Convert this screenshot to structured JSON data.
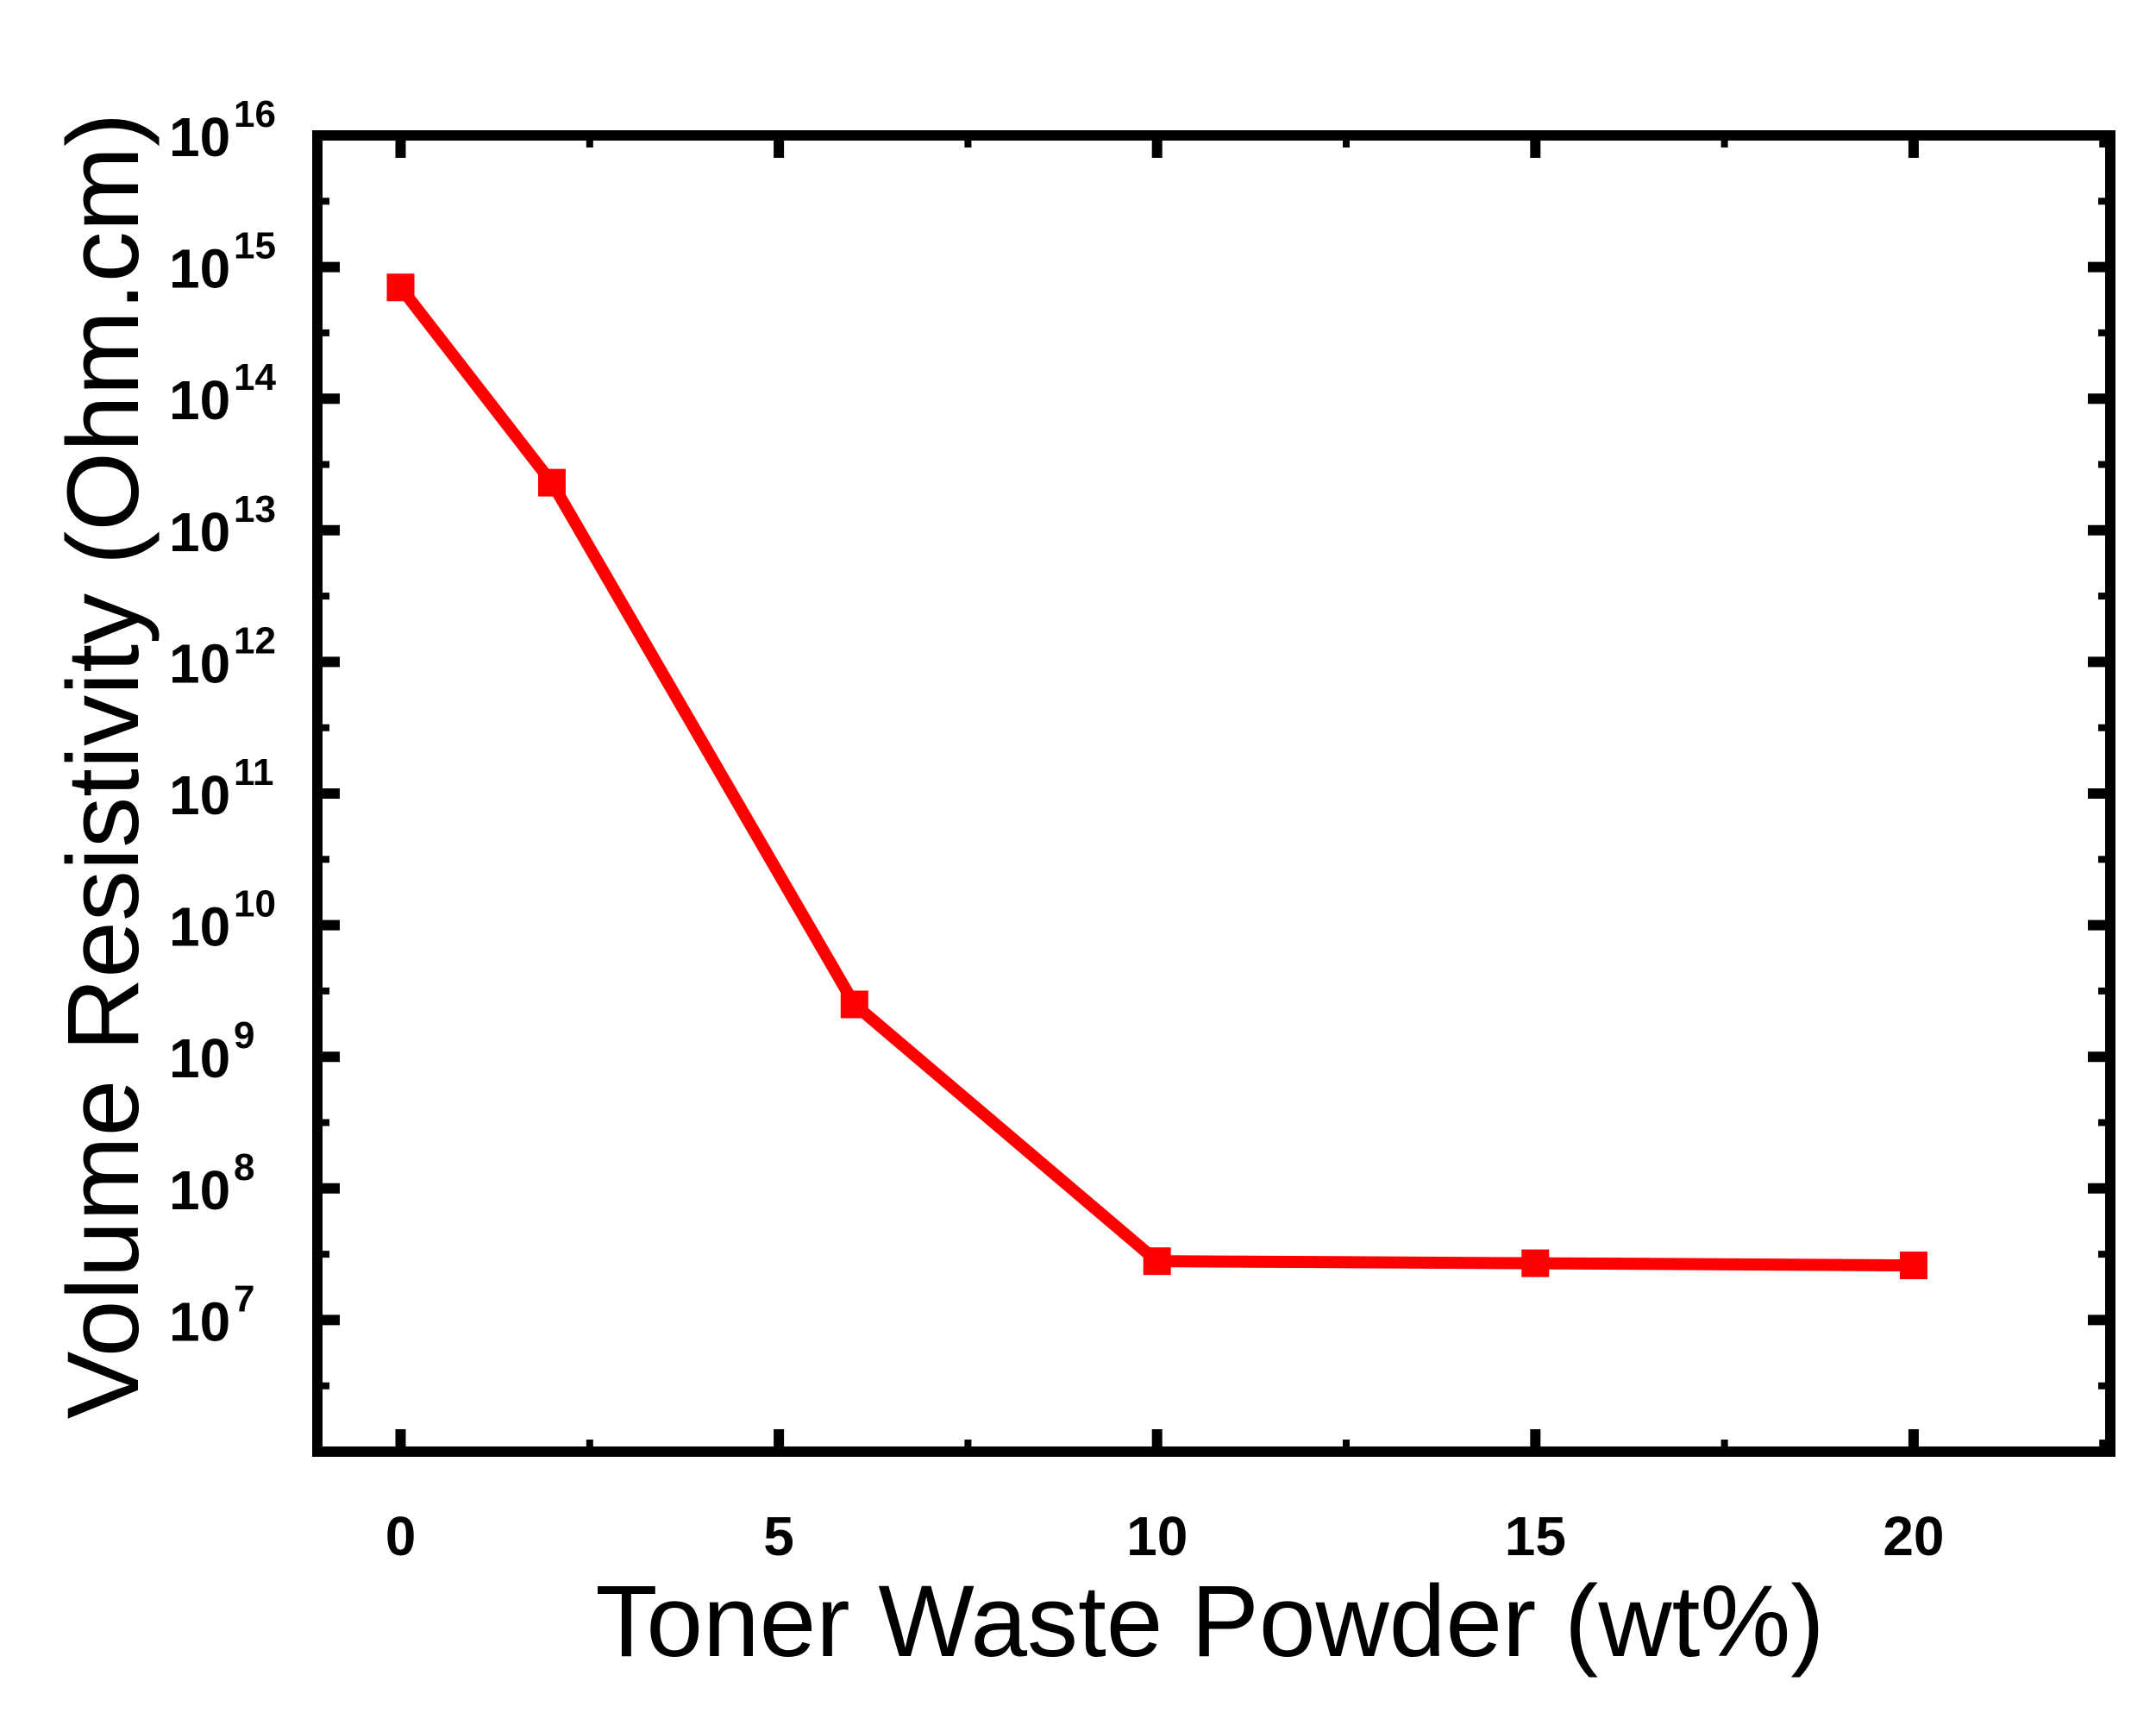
{
  "chart_data": {
    "type": "line",
    "xlabel": "Toner Waste Powder (wt%)",
    "ylabel": "Volume Resistivity (Ohm.cm)",
    "xlim": [
      -1.1,
      22.6
    ],
    "ylim_log10": [
      6.0,
      16.0
    ],
    "y_scale": "log",
    "x_ticks": [
      0,
      5,
      10,
      15,
      20
    ],
    "y_ticks": [
      {
        "base": "10",
        "exp": "7"
      },
      {
        "base": "10",
        "exp": "8"
      },
      {
        "base": "10",
        "exp": "9"
      },
      {
        "base": "10",
        "exp": "10"
      },
      {
        "base": "10",
        "exp": "11"
      },
      {
        "base": "10",
        "exp": "12"
      },
      {
        "base": "10",
        "exp": "13"
      },
      {
        "base": "10",
        "exp": "14"
      },
      {
        "base": "10",
        "exp": "15"
      },
      {
        "base": "10",
        "exp": "16"
      }
    ],
    "grid": false,
    "series": [
      {
        "color": "#ff0000",
        "marker": "square",
        "x": [
          0,
          2,
          6,
          10,
          15,
          20
        ],
        "y": [
          700000000000000.0,
          23000000000000.0,
          2500000000.0,
          28000000.0,
          27000000.0,
          26000000.0
        ]
      }
    ]
  }
}
